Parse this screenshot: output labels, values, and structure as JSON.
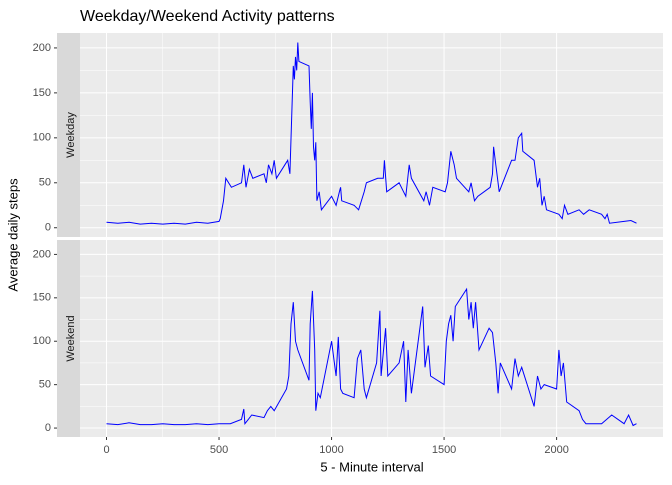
{
  "chart_data": {
    "type": "line",
    "title": "Weekday/Weekend Activity patterns",
    "x_label": "5 - Minute interval",
    "y_label": "Average daily steps",
    "xlim": [
      -117.75,
      2472.75
    ],
    "xticks": [
      0,
      500,
      1000,
      1500,
      2000
    ],
    "ylim": [
      -10.3,
      216.6
    ],
    "yticks": [
      0,
      50,
      100,
      150,
      200
    ],
    "grid": true,
    "series": [
      {
        "name": "Weekday",
        "color": "#0000ff",
        "x": [
          0,
          50,
          100,
          150,
          200,
          250,
          300,
          350,
          400,
          450,
          500,
          505,
          520,
          530,
          555,
          600,
          610,
          620,
          635,
          650,
          700,
          710,
          720,
          735,
          745,
          755,
          805,
          815,
          830,
          835,
          840,
          845,
          850,
          855,
          900,
          905,
          910,
          915,
          920,
          925,
          930,
          935,
          945,
          955,
          1000,
          1020,
          1035,
          1040,
          1045,
          1100,
          1120,
          1145,
          1155,
          1205,
          1215,
          1230,
          1235,
          1245,
          1300,
          1330,
          1345,
          1355,
          1410,
          1420,
          1435,
          1450,
          1505,
          1515,
          1530,
          1545,
          1555,
          1610,
          1620,
          1635,
          1650,
          1705,
          1715,
          1720,
          1730,
          1745,
          1800,
          1815,
          1830,
          1845,
          1850,
          1900,
          1915,
          1925,
          1935,
          1945,
          1955,
          2010,
          2025,
          2035,
          2050,
          2100,
          2120,
          2145,
          2200,
          2215,
          2225,
          2235,
          2300,
          2330,
          2355
        ],
        "values": [
          6,
          5,
          6,
          4,
          5,
          4,
          5,
          4,
          6,
          5,
          7,
          10,
          30,
          55,
          45,
          50,
          70,
          45,
          65,
          55,
          60,
          50,
          70,
          60,
          75,
          55,
          75,
          60,
          180,
          165,
          190,
          175,
          206,
          185,
          180,
          140,
          110,
          150,
          90,
          75,
          95,
          30,
          40,
          20,
          35,
          25,
          40,
          45,
          30,
          25,
          20,
          40,
          50,
          55,
          55,
          55,
          75,
          40,
          50,
          35,
          70,
          55,
          30,
          40,
          25,
          45,
          40,
          50,
          85,
          70,
          55,
          40,
          50,
          30,
          35,
          45,
          60,
          90,
          70,
          40,
          75,
          75,
          100,
          105,
          85,
          75,
          45,
          55,
          25,
          35,
          20,
          15,
          10,
          25,
          15,
          20,
          15,
          20,
          15,
          10,
          15,
          5,
          7,
          8,
          5
        ]
      },
      {
        "name": "Weekend",
        "color": "#0000ff",
        "x": [
          0,
          50,
          100,
          150,
          200,
          250,
          300,
          350,
          400,
          450,
          500,
          550,
          600,
          610,
          615,
          630,
          645,
          700,
          715,
          730,
          745,
          800,
          810,
          820,
          830,
          840,
          850,
          900,
          905,
          915,
          925,
          930,
          940,
          950,
          1000,
          1010,
          1020,
          1030,
          1040,
          1050,
          1100,
          1115,
          1130,
          1145,
          1155,
          1200,
          1215,
          1220,
          1240,
          1250,
          1300,
          1320,
          1330,
          1340,
          1355,
          1405,
          1415,
          1430,
          1440,
          1500,
          1510,
          1520,
          1530,
          1540,
          1550,
          1600,
          1610,
          1620,
          1630,
          1640,
          1655,
          1700,
          1715,
          1730,
          1740,
          1750,
          1800,
          1815,
          1830,
          1845,
          1900,
          1915,
          1930,
          1945,
          2000,
          2010,
          2020,
          2030,
          2045,
          2100,
          2115,
          2130,
          2200,
          2245,
          2300,
          2320,
          2340,
          2355
        ],
        "values": [
          5,
          4,
          6,
          4,
          4,
          5,
          4,
          4,
          5,
          4,
          5,
          5,
          10,
          22,
          5,
          10,
          15,
          12,
          20,
          25,
          20,
          45,
          60,
          120,
          145,
          100,
          90,
          55,
          120,
          158,
          90,
          20,
          40,
          35,
          100,
          80,
          60,
          105,
          45,
          40,
          35,
          80,
          90,
          45,
          35,
          75,
          135,
          60,
          115,
          60,
          75,
          100,
          30,
          90,
          40,
          140,
          70,
          95,
          60,
          50,
          100,
          120,
          130,
          100,
          140,
          160,
          125,
          145,
          115,
          145,
          90,
          115,
          110,
          75,
          40,
          75,
          45,
          80,
          60,
          70,
          25,
          60,
          45,
          50,
          45,
          90,
          60,
          75,
          30,
          20,
          10,
          5,
          5,
          15,
          5,
          15,
          3,
          5
        ]
      }
    ]
  }
}
